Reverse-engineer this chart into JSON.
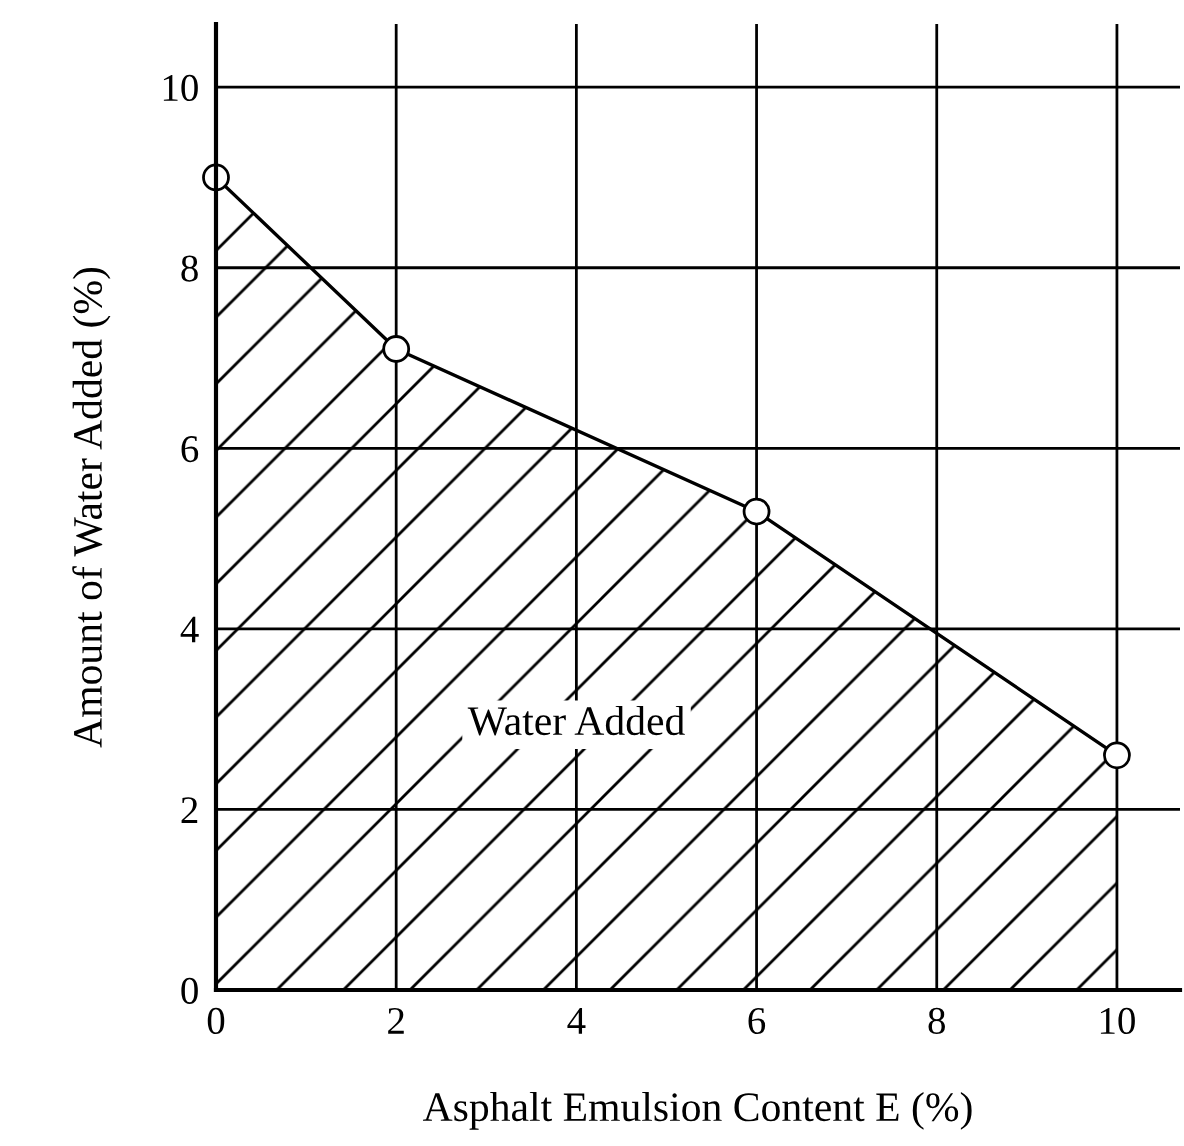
{
  "chart_data": {
    "type": "area",
    "x": [
      0,
      2,
      6,
      10
    ],
    "values": [
      9.0,
      7.1,
      5.3,
      2.6
    ],
    "color": "#000000",
    "marker": "circle",
    "xlim": [
      0,
      10.7
    ],
    "ylim": [
      0,
      10.7
    ],
    "xticks": [
      0,
      2,
      4,
      6,
      8,
      10
    ],
    "yticks": [
      0,
      2,
      4,
      6,
      8,
      10
    ],
    "grid": true,
    "xlabel": "Asphalt Emulsion Content E (%)",
    "ylabel": "Amount of Water Added (%)",
    "annotations": [
      "Water Added"
    ]
  }
}
